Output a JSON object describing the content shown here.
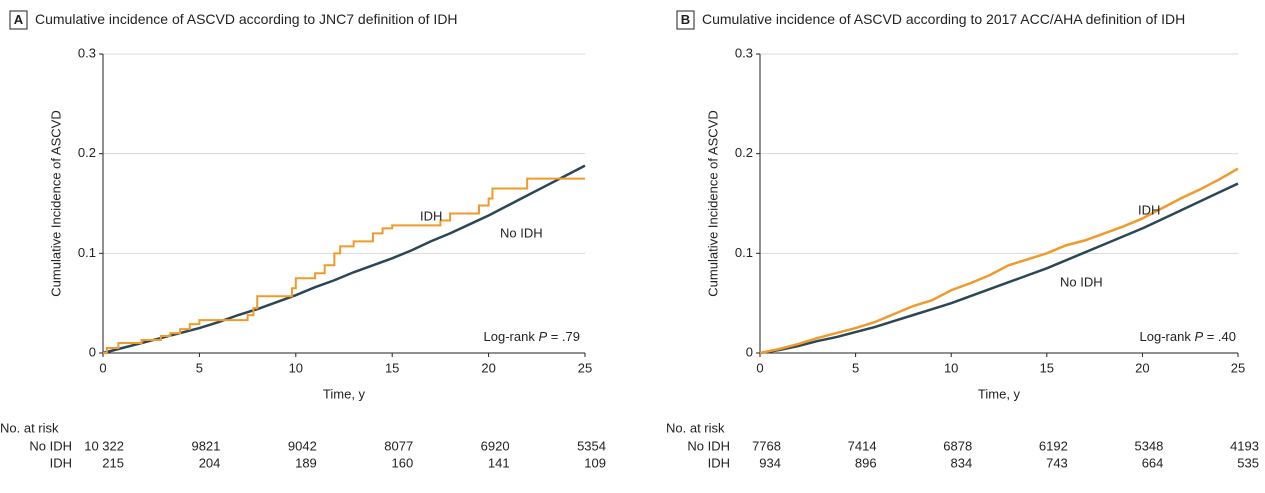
{
  "chart_data": [
    {
      "type": "line",
      "panel": "A",
      "title": "Cumulative incidence of ASCVD according to JNC7 definition of IDH",
      "ylabel": "Cumulative Incidence of ASCVD",
      "xlabel": "Time, y",
      "xlim": [
        0,
        25
      ],
      "xticks": [
        0,
        5,
        10,
        15,
        20,
        25
      ],
      "ylim": [
        0,
        0.3
      ],
      "yticks": [
        0,
        0.1,
        0.2,
        0.3
      ],
      "grid": true,
      "annotation": [
        "Log-rank ",
        "P",
        " = .79"
      ],
      "risk_table_title": "No. at risk",
      "series": [
        {
          "name": "No IDH",
          "color": "#2b4756",
          "step": false,
          "x": [
            0,
            1,
            2,
            3,
            4,
            5,
            6,
            7,
            8,
            9,
            10,
            11,
            12,
            13,
            14,
            15,
            16,
            17,
            18,
            19,
            20,
            21,
            22,
            23,
            24,
            25
          ],
          "values": [
            0,
            0.005,
            0.01,
            0.015,
            0.02,
            0.025,
            0.031,
            0.038,
            0.044,
            0.051,
            0.058,
            0.066,
            0.073,
            0.081,
            0.088,
            0.095,
            0.103,
            0.112,
            0.12,
            0.129,
            0.138,
            0.148,
            0.158,
            0.168,
            0.178,
            0.188
          ],
          "at_risk": [
            "10 322",
            "9821",
            "9042",
            "8077",
            "6920",
            "5354"
          ]
        },
        {
          "name": "IDH",
          "color": "#f09a2c",
          "step": true,
          "x": [
            0,
            0.2,
            0.8,
            2,
            3,
            3.5,
            4,
            4.5,
            5,
            7.5,
            7.8,
            8,
            9.8,
            10,
            11,
            11.5,
            12,
            12.3,
            13,
            14,
            14.5,
            15,
            17.5,
            18,
            19.5,
            20,
            20.2,
            22,
            25
          ],
          "values": [
            0,
            0.005,
            0.01,
            0.013,
            0.017,
            0.02,
            0.024,
            0.029,
            0.033,
            0.038,
            0.045,
            0.057,
            0.065,
            0.075,
            0.08,
            0.088,
            0.1,
            0.107,
            0.112,
            0.12,
            0.125,
            0.128,
            0.133,
            0.14,
            0.148,
            0.155,
            0.165,
            0.175,
            0.175
          ],
          "at_risk": [
            "215",
            "204",
            "189",
            "160",
            "141",
            "109"
          ]
        }
      ]
    },
    {
      "type": "line",
      "panel": "B",
      "title": "Cumulative incidence of ASCVD according to 2017 ACC/AHA definition of IDH",
      "ylabel": "Cumulative Incidence of ASCVD",
      "xlabel": "Time, y",
      "xlim": [
        0,
        25
      ],
      "xticks": [
        0,
        5,
        10,
        15,
        20,
        25
      ],
      "ylim": [
        0,
        0.3
      ],
      "yticks": [
        0,
        0.1,
        0.2,
        0.3
      ],
      "grid": true,
      "annotation": [
        "Log-rank ",
        "P",
        " = .40"
      ],
      "risk_table_title": "No. at risk",
      "series": [
        {
          "name": "No IDH",
          "color": "#2b4756",
          "step": false,
          "x": [
            0,
            1,
            2,
            3,
            4,
            5,
            6,
            7,
            8,
            9,
            10,
            11,
            12,
            13,
            14,
            15,
            16,
            17,
            18,
            19,
            20,
            21,
            22,
            23,
            24,
            25
          ],
          "values": [
            0,
            0.003,
            0.007,
            0.012,
            0.016,
            0.021,
            0.026,
            0.032,
            0.038,
            0.044,
            0.05,
            0.057,
            0.064,
            0.071,
            0.078,
            0.085,
            0.093,
            0.101,
            0.109,
            0.117,
            0.125,
            0.134,
            0.143,
            0.152,
            0.161,
            0.17
          ],
          "at_risk": [
            "7768",
            "7414",
            "6878",
            "6192",
            "5348",
            "4193"
          ]
        },
        {
          "name": "IDH",
          "color": "#f09a2c",
          "step": false,
          "x": [
            0,
            1,
            2,
            3,
            4,
            5,
            6,
            7,
            8,
            9,
            10,
            11,
            12,
            13,
            14,
            15,
            16,
            17,
            18,
            19,
            20,
            21,
            22,
            23,
            24,
            25
          ],
          "values": [
            0,
            0.004,
            0.009,
            0.015,
            0.02,
            0.025,
            0.031,
            0.039,
            0.047,
            0.053,
            0.063,
            0.07,
            0.078,
            0.088,
            0.094,
            0.1,
            0.108,
            0.113,
            0.12,
            0.127,
            0.135,
            0.145,
            0.155,
            0.164,
            0.174,
            0.185
          ],
          "at_risk": [
            "934",
            "896",
            "834",
            "743",
            "664",
            "535"
          ]
        }
      ]
    }
  ]
}
